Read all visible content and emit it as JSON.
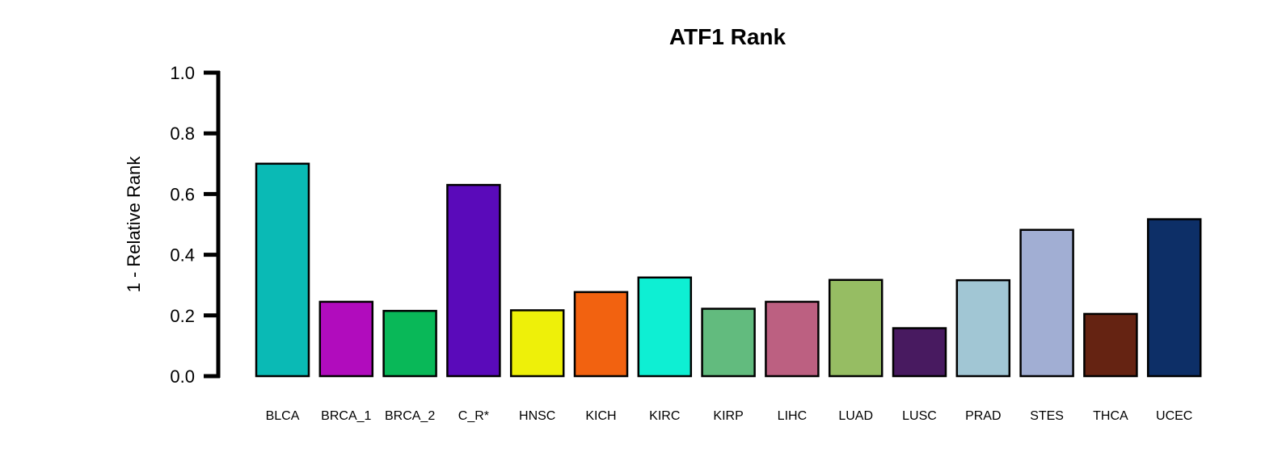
{
  "chart_data": {
    "type": "bar",
    "title": "ATF1 Rank",
    "ylabel": "1 - Relative Rank",
    "xlabel": "",
    "ylim": [
      0,
      1
    ],
    "yticks": [
      "0.0",
      "0.2",
      "0.4",
      "0.6",
      "0.8",
      "1.0"
    ],
    "ytick_values": [
      0,
      0.2,
      0.4,
      0.6,
      0.8,
      1.0
    ],
    "grid": false,
    "categories": [
      "BLCA",
      "BRCA_1",
      "BRCA_2",
      "C_R*",
      "HNSC",
      "KICH",
      "KIRC",
      "KIRP",
      "LIHC",
      "LUAD",
      "LUSC",
      "PRAD",
      "STES",
      "THCA",
      "UCEC"
    ],
    "values": [
      0.7,
      0.245,
      0.215,
      0.63,
      0.217,
      0.277,
      0.325,
      0.222,
      0.245,
      0.317,
      0.158,
      0.316,
      0.482,
      0.205,
      0.517
    ],
    "colors": [
      "#0ABAB5",
      "#B10CBD",
      "#09B858",
      "#5A0ABA",
      "#EEF009",
      "#F26210",
      "#0EEFD3",
      "#62BB7E",
      "#BC6081",
      "#96BD63",
      "#481A60",
      "#A1C6D4",
      "#A1AED3",
      "#652312",
      "#0D2F67"
    ]
  }
}
